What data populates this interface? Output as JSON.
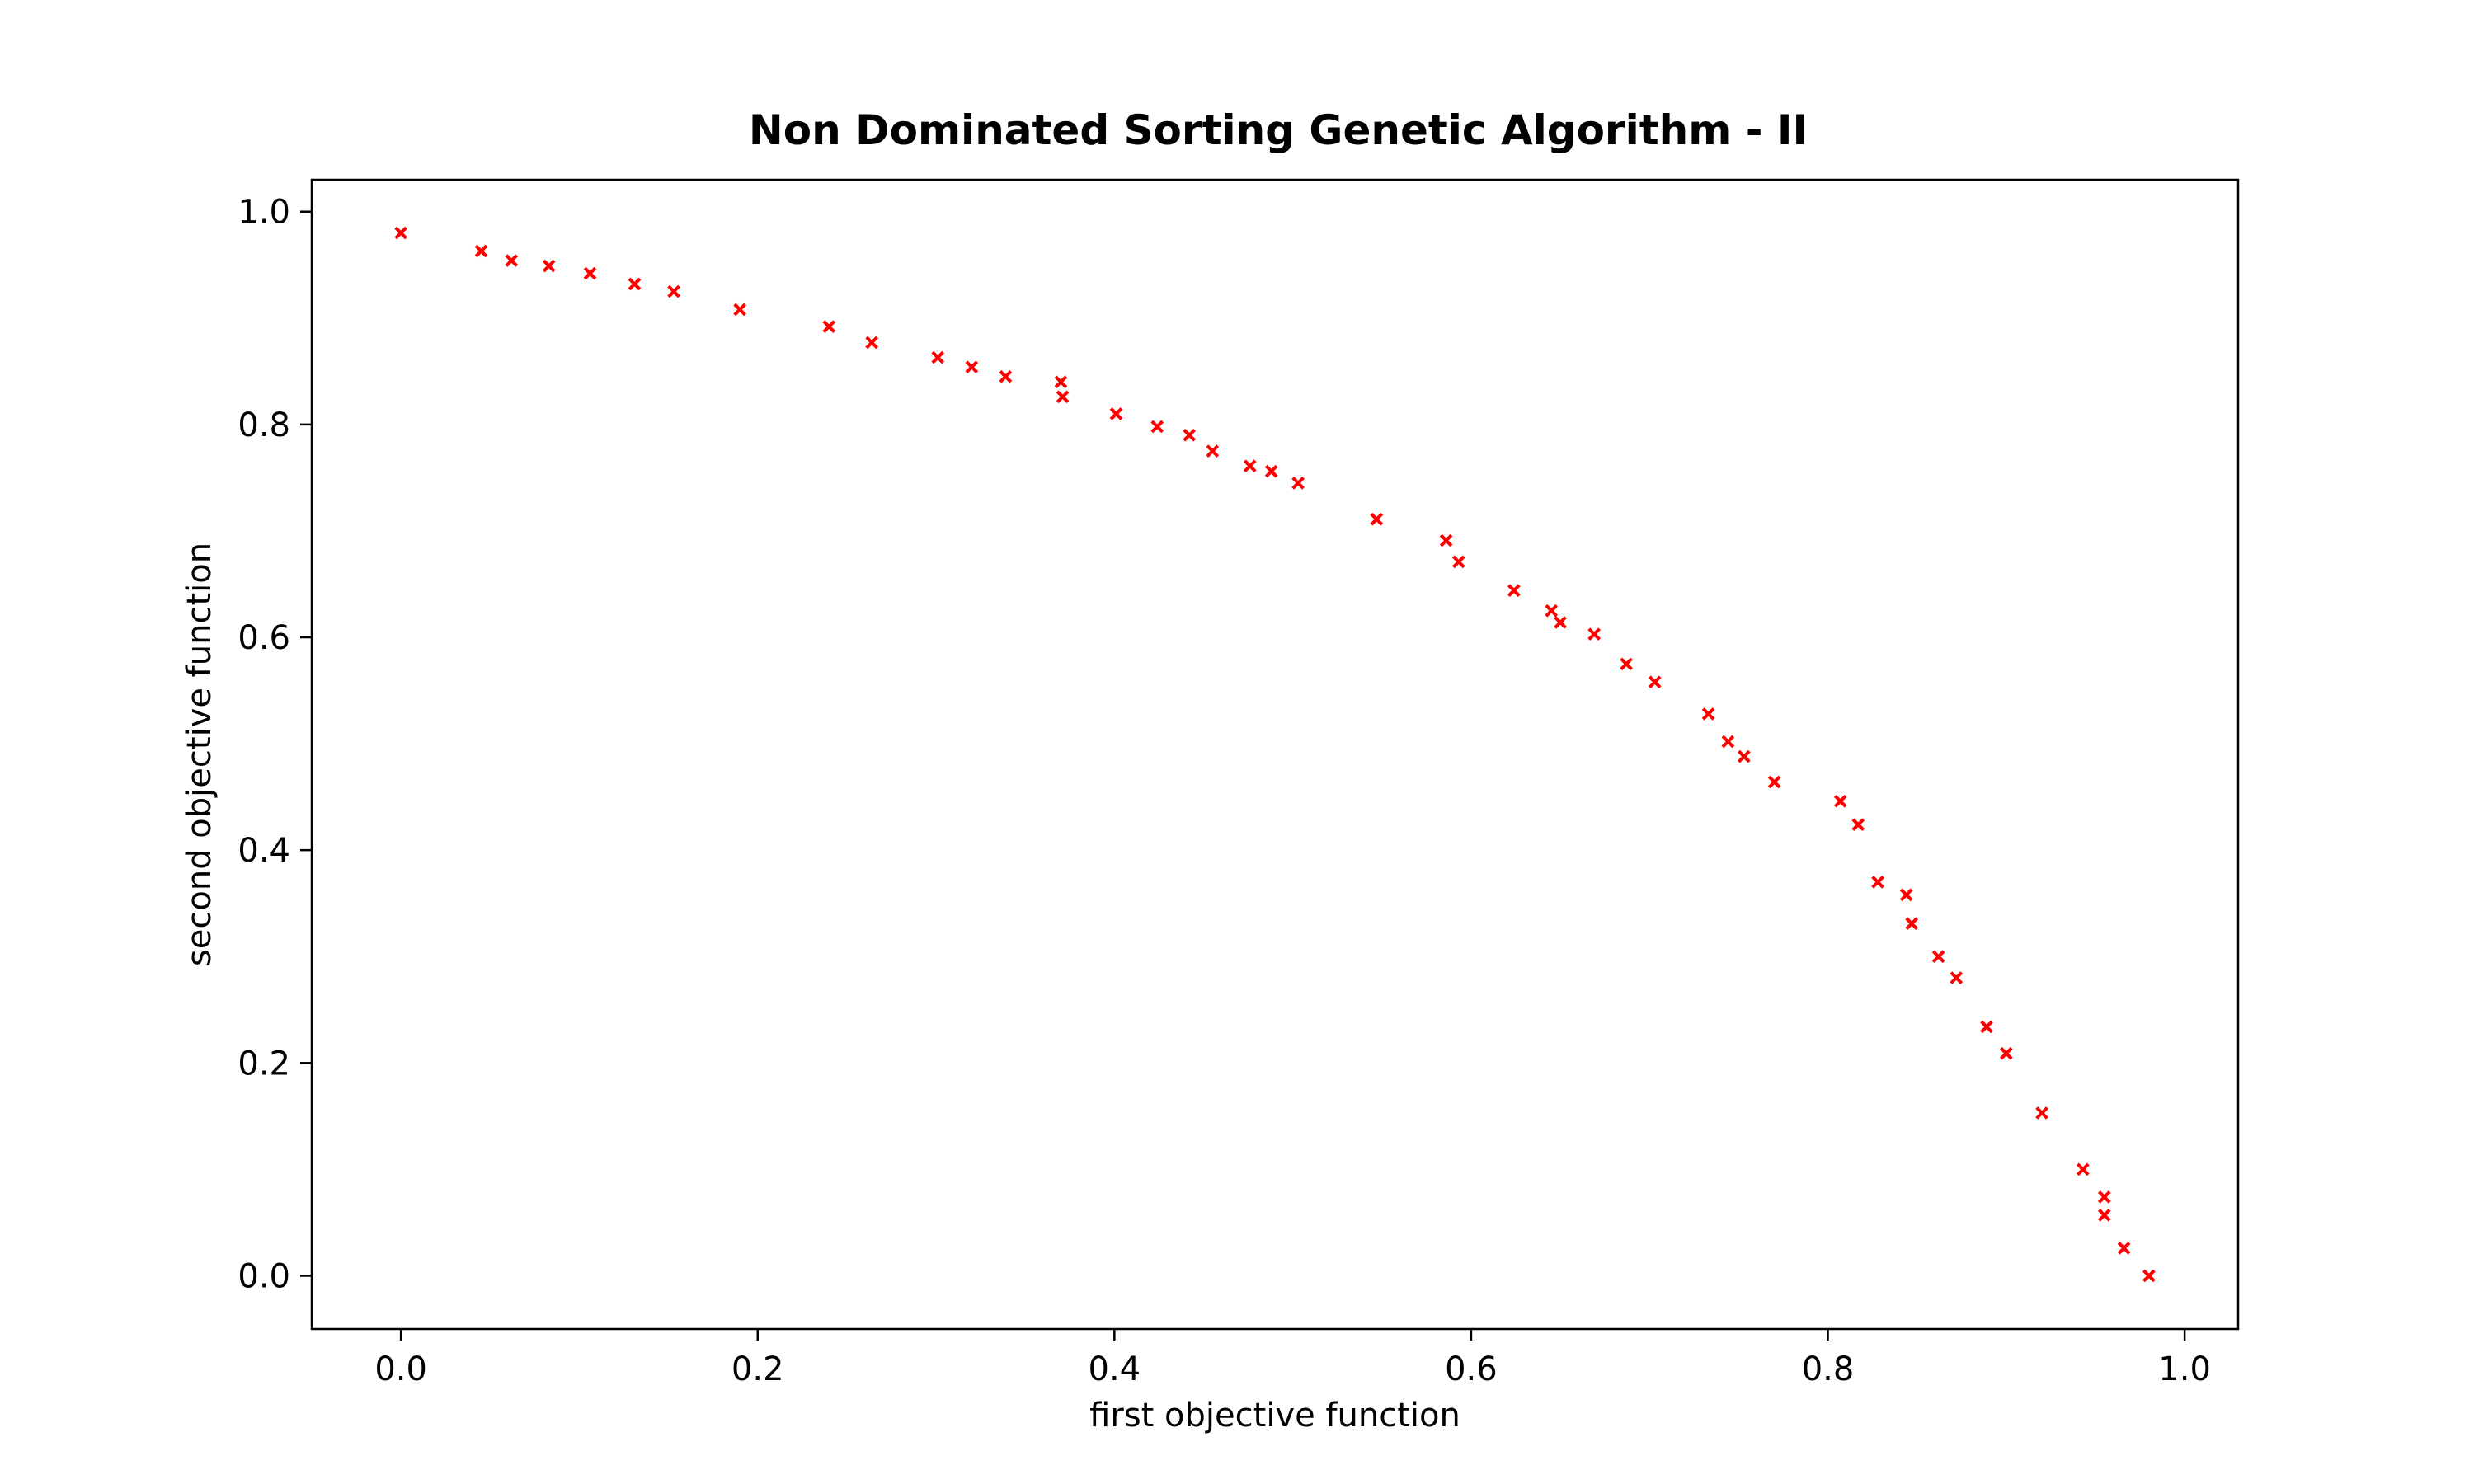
{
  "chart_data": {
    "type": "scatter",
    "title": "Non Dominated Sorting Genetic Algorithm - II",
    "xlabel": "first objective function",
    "ylabel": "second objective function",
    "xlim": [
      -0.05,
      1.03
    ],
    "ylim": [
      -0.05,
      1.03
    ],
    "xticks": [
      0.0,
      0.2,
      0.4,
      0.6,
      0.8,
      1.0
    ],
    "xtick_labels": [
      "0.0",
      "0.2",
      "0.4",
      "0.6",
      "0.8",
      "1.0"
    ],
    "yticks": [
      0.0,
      0.2,
      0.4,
      0.6,
      0.8,
      1.0
    ],
    "ytick_labels": [
      "0.0",
      "0.2",
      "0.4",
      "0.6",
      "0.8",
      "1.0"
    ],
    "grid": false,
    "marker": "x",
    "marker_color": "#ff0000",
    "points": [
      [
        0.0,
        0.98
      ],
      [
        0.045,
        0.963
      ],
      [
        0.062,
        0.954
      ],
      [
        0.083,
        0.949
      ],
      [
        0.106,
        0.942
      ],
      [
        0.131,
        0.932
      ],
      [
        0.153,
        0.925
      ],
      [
        0.19,
        0.908
      ],
      [
        0.24,
        0.892
      ],
      [
        0.264,
        0.877
      ],
      [
        0.301,
        0.863
      ],
      [
        0.32,
        0.854
      ],
      [
        0.339,
        0.845
      ],
      [
        0.37,
        0.84
      ],
      [
        0.371,
        0.826
      ],
      [
        0.401,
        0.81
      ],
      [
        0.424,
        0.798
      ],
      [
        0.442,
        0.79
      ],
      [
        0.455,
        0.775
      ],
      [
        0.476,
        0.761
      ],
      [
        0.488,
        0.756
      ],
      [
        0.503,
        0.745
      ],
      [
        0.547,
        0.711
      ],
      [
        0.586,
        0.691
      ],
      [
        0.593,
        0.671
      ],
      [
        0.624,
        0.644
      ],
      [
        0.645,
        0.625
      ],
      [
        0.65,
        0.614
      ],
      [
        0.669,
        0.603
      ],
      [
        0.687,
        0.575
      ],
      [
        0.703,
        0.558
      ],
      [
        0.733,
        0.528
      ],
      [
        0.744,
        0.502
      ],
      [
        0.753,
        0.488
      ],
      [
        0.77,
        0.464
      ],
      [
        0.807,
        0.446
      ],
      [
        0.817,
        0.424
      ],
      [
        0.828,
        0.37
      ],
      [
        0.844,
        0.358
      ],
      [
        0.847,
        0.331
      ],
      [
        0.862,
        0.3
      ],
      [
        0.872,
        0.28
      ],
      [
        0.889,
        0.234
      ],
      [
        0.9,
        0.209
      ],
      [
        0.92,
        0.153
      ],
      [
        0.943,
        0.1
      ],
      [
        0.955,
        0.074
      ],
      [
        0.955,
        0.057
      ],
      [
        0.966,
        0.026
      ],
      [
        0.98,
        0.0
      ]
    ]
  }
}
